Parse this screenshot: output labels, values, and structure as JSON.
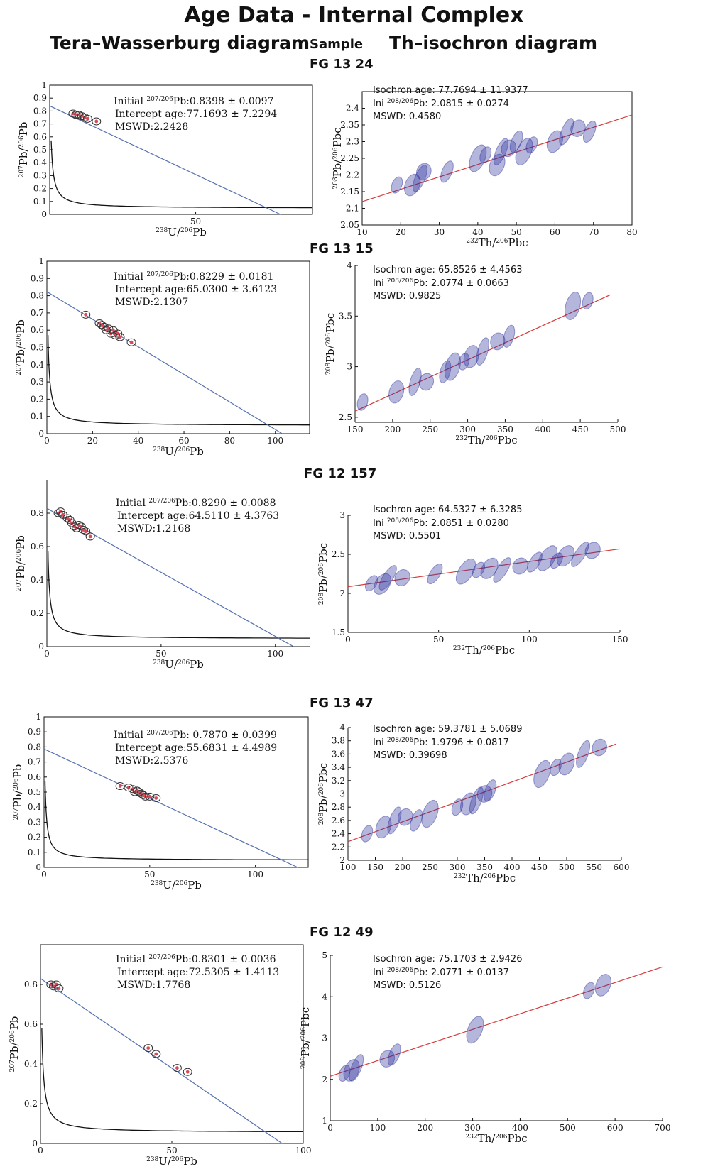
{
  "page": {
    "title": "Age Data - Internal Complex",
    "left_heading": "Tera–Wasserburg diagram",
    "center_heading": "Sample",
    "right_heading": "Th–isochron diagram"
  },
  "samples": [
    "FG 13 24",
    "FG 13 15",
    "FG 12 157",
    "FG 13 47",
    "FG 12 49"
  ],
  "colors": {
    "regression_tw": "#5470b0",
    "regression_th": "#d43c3c",
    "ellipse_tw_stroke": "#333333",
    "ellipse_tw_fill": "#d84a5a",
    "ellipse_th_fill": "#2a2f9a",
    "curve": "#111111"
  },
  "chart_data": [
    {
      "type": "scatter",
      "diagram": "tera-wasserburg",
      "sample": "FG 13 24",
      "xlabel_sup1": "238",
      "xlabel_main1": "U/",
      "xlabel_sup2": "206",
      "xlabel_main2": "Pb",
      "ylabel_sup1": "207",
      "ylabel_main1": "Pb/",
      "ylabel_sup2": "206",
      "ylabel_main2": "Pb",
      "xlim": [
        0,
        90
      ],
      "ylim": [
        0,
        1
      ],
      "xticks": [
        50
      ],
      "yticks": [
        0,
        0.1,
        0.2,
        0.3,
        0.4,
        0.5,
        0.6,
        0.7,
        0.8,
        0.9,
        1
      ],
      "box": "full",
      "initial_prefix": "Initial ",
      "initial_sup": "207/206",
      "initial_suffix": "Pb:0.8398 ± 0.0097",
      "intercept_text": "Intercept age:77.1693 ± 7.2294",
      "mswd_text": "MSWD:2.2428",
      "regression": {
        "y0": 0.8398,
        "x_intercept": 79.0
      },
      "curve_floor": 0.047,
      "points": [
        [
          8,
          0.78
        ],
        [
          9,
          0.77
        ],
        [
          10,
          0.77
        ],
        [
          11,
          0.76
        ],
        [
          12,
          0.75
        ],
        [
          13,
          0.74
        ],
        [
          16,
          0.72
        ]
      ]
    },
    {
      "type": "scatter",
      "diagram": "th-isochron",
      "sample": "FG 13 24",
      "xlabel_sup1": "232",
      "xlabel_main1": "Th/",
      "xlabel_sup2": "206",
      "xlabel_main2": "Pbc",
      "ylabel_sup1": "208",
      "ylabel_main1": "Pb/",
      "ylabel_sup2": "206",
      "ylabel_main2": "Pbc",
      "xlim": [
        10,
        80
      ],
      "ylim": [
        2.05,
        2.45
      ],
      "xticks": [
        10,
        20,
        30,
        40,
        50,
        60,
        70,
        80
      ],
      "yticks": [
        2.05,
        2.1,
        2.15,
        2.2,
        2.25,
        2.3,
        2.35,
        2.4
      ],
      "box": "full",
      "age_text": "Isochron age: 77.7694 ± 11.9377",
      "ini_prefix": "Ini ",
      "ini_sup": "208/206",
      "ini_suffix": "Pb: 2.0815 ± 0.0274",
      "mswd_text": "MSWD: 0.4580",
      "regression": {
        "x0": 10,
        "y0": 2.12,
        "x1": 80,
        "y1": 2.38
      },
      "points": [
        [
          19,
          2.17
        ],
        [
          23,
          2.17
        ],
        [
          25,
          2.19
        ],
        [
          26,
          2.21
        ],
        [
          32,
          2.21
        ],
        [
          40,
          2.25
        ],
        [
          42,
          2.26
        ],
        [
          45,
          2.23
        ],
        [
          46,
          2.27
        ],
        [
          48,
          2.28
        ],
        [
          50,
          2.3
        ],
        [
          52,
          2.27
        ],
        [
          54,
          2.29
        ],
        [
          60,
          2.3
        ],
        [
          63,
          2.33
        ],
        [
          66,
          2.34
        ],
        [
          69,
          2.33
        ]
      ]
    },
    {
      "type": "scatter",
      "diagram": "tera-wasserburg",
      "sample": "FG 13 15",
      "xlabel_sup1": "238",
      "xlabel_main1": "U/",
      "xlabel_sup2": "206",
      "xlabel_main2": "Pb",
      "ylabel_sup1": "207",
      "ylabel_main1": "Pb/",
      "ylabel_sup2": "206",
      "ylabel_main2": "Pb",
      "xlim": [
        0,
        115
      ],
      "ylim": [
        0,
        1
      ],
      "xticks": [
        0,
        20,
        40,
        60,
        80,
        100
      ],
      "yticks": [
        0,
        0.1,
        0.2,
        0.3,
        0.4,
        0.5,
        0.6,
        0.7,
        0.8,
        0.9,
        1
      ],
      "box": "full",
      "initial_prefix": "Initial ",
      "initial_sup": "207/206",
      "initial_suffix": "Pb:0.8229 ± 0.0181",
      "intercept_text": "Intercept  age:65.0300 ± 3.6123",
      "mswd_text": "MSWD:2.1307",
      "regression": {
        "y0": 0.8229,
        "x_intercept": 103.0
      },
      "curve_floor": 0.047,
      "points": [
        [
          17,
          0.69
        ],
        [
          23,
          0.64
        ],
        [
          24,
          0.63
        ],
        [
          25,
          0.62
        ],
        [
          26,
          0.6
        ],
        [
          27,
          0.61
        ],
        [
          28,
          0.58
        ],
        [
          29,
          0.6
        ],
        [
          30,
          0.57
        ],
        [
          31,
          0.58
        ],
        [
          32,
          0.56
        ],
        [
          37,
          0.53
        ]
      ]
    },
    {
      "type": "scatter",
      "diagram": "th-isochron",
      "sample": "FG 13 15",
      "xlabel_sup1": "232",
      "xlabel_main1": "Th/",
      "xlabel_sup2": "206",
      "xlabel_main2": "Pbc",
      "ylabel_sup1": "208",
      "ylabel_main1": "Pb/",
      "ylabel_sup2": "206",
      "ylabel_main2": "Pbc",
      "xlim": [
        150,
        500
      ],
      "ylim": [
        2.45,
        4
      ],
      "xticks": [
        150,
        200,
        250,
        300,
        350,
        400,
        450,
        500
      ],
      "yticks": [
        2.5,
        3,
        3.5,
        4
      ],
      "box": "l",
      "age_text": "Isochron age: 65.8526 ± 4.4563",
      "ini_prefix": "Ini ",
      "ini_sup": "208/206",
      "ini_suffix": "Pb: 2.0774 ± 0.0663",
      "mswd_text": "MSWD: 0.9825",
      "regression": {
        "x0": 150,
        "y0": 2.56,
        "x1": 490,
        "y1": 3.71
      },
      "points": [
        [
          160,
          2.65
        ],
        [
          205,
          2.75
        ],
        [
          230,
          2.85
        ],
        [
          245,
          2.85
        ],
        [
          270,
          2.95
        ],
        [
          280,
          3.0
        ],
        [
          295,
          3.05
        ],
        [
          305,
          3.1
        ],
        [
          320,
          3.15
        ],
        [
          340,
          3.25
        ],
        [
          355,
          3.3
        ],
        [
          440,
          3.6
        ],
        [
          460,
          3.65
        ]
      ]
    },
    {
      "type": "scatter",
      "diagram": "tera-wasserburg",
      "sample": "FG 12 157",
      "xlabel_sup1": "238",
      "xlabel_main1": "U/",
      "xlabel_sup2": "206",
      "xlabel_main2": "Pb",
      "ylabel_sup1": "207",
      "ylabel_main1": "Pb/",
      "ylabel_sup2": "206",
      "ylabel_main2": "Pb",
      "xlim": [
        0,
        115
      ],
      "ylim": [
        0,
        1
      ],
      "xticks": [
        0,
        50,
        100
      ],
      "yticks": [
        0,
        0.2,
        0.4,
        0.6,
        0.8
      ],
      "box": "l",
      "initial_prefix": "Initial ",
      "initial_sup": "207/206",
      "initial_suffix": "Pb:0.8290 ± 0.0088",
      "intercept_text": "Intercept  age:64.5110 ± 4.3763",
      "mswd_text": "MSWD:1.2168",
      "regression": {
        "y0": 0.829,
        "x_intercept": 108.0
      },
      "curve_floor": 0.047,
      "points": [
        [
          5,
          0.8
        ],
        [
          6,
          0.81
        ],
        [
          7,
          0.79
        ],
        [
          9,
          0.77
        ],
        [
          10,
          0.76
        ],
        [
          11,
          0.74
        ],
        [
          12,
          0.72
        ],
        [
          13,
          0.71
        ],
        [
          14,
          0.73
        ],
        [
          15,
          0.72
        ],
        [
          16,
          0.7
        ],
        [
          17,
          0.69
        ],
        [
          19,
          0.66
        ]
      ]
    },
    {
      "type": "scatter",
      "diagram": "th-isochron",
      "sample": "FG 12 157",
      "xlabel_sup1": "232",
      "xlabel_main1": "Th/",
      "xlabel_sup2": "206",
      "xlabel_main2": "Pbc",
      "ylabel_sup1": "208",
      "ylabel_main1": "Pb/",
      "ylabel_sup2": "206",
      "ylabel_main2": "Pbc",
      "xlim": [
        0,
        150
      ],
      "ylim": [
        1.5,
        3
      ],
      "xticks": [
        0,
        50,
        100,
        150
      ],
      "yticks": [
        1.5,
        2,
        2.5,
        3
      ],
      "box": "l",
      "age_text": "Isochron age: 64.5327 ± 6.3285",
      "ini_prefix": "Ini ",
      "ini_sup": "208/206",
      "ini_suffix": "Pb: 2.0851 ± 0.0280",
      "mswd_text": "MSWD: 0.5501",
      "regression": {
        "x0": 0,
        "y0": 2.085,
        "x1": 150,
        "y1": 2.57
      },
      "points": [
        [
          13,
          2.13
        ],
        [
          19,
          2.12
        ],
        [
          22,
          2.2
        ],
        [
          30,
          2.2
        ],
        [
          48,
          2.25
        ],
        [
          65,
          2.28
        ],
        [
          72,
          2.3
        ],
        [
          78,
          2.32
        ],
        [
          85,
          2.3
        ],
        [
          95,
          2.35
        ],
        [
          103,
          2.4
        ],
        [
          110,
          2.45
        ],
        [
          115,
          2.42
        ],
        [
          120,
          2.48
        ],
        [
          128,
          2.5
        ],
        [
          135,
          2.55
        ]
      ]
    },
    {
      "type": "scatter",
      "diagram": "tera-wasserburg",
      "sample": "FG 13 47",
      "xlabel_sup1": "238",
      "xlabel_main1": "U/",
      "xlabel_sup2": "206",
      "xlabel_main2": "Pb",
      "ylabel_sup1": "207",
      "ylabel_main1": "Pb/",
      "ylabel_sup2": "206",
      "ylabel_main2": "Pb",
      "xlim": [
        0,
        125
      ],
      "ylim": [
        0,
        1
      ],
      "xticks": [
        0,
        50,
        100
      ],
      "yticks": [
        0,
        0.1,
        0.2,
        0.3,
        0.4,
        0.5,
        0.6,
        0.7,
        0.8,
        0.9,
        1
      ],
      "box": "full",
      "initial_prefix": "Initial ",
      "initial_sup": "207/206",
      "initial_suffix": "Pb: 0.7870 ± 0.0399",
      "intercept_text": "Intercept  age:55.6831 ± 4.4989",
      "mswd_text": "MSWD:2.5376",
      "regression": {
        "y0": 0.787,
        "x_intercept": 120.0
      },
      "curve_floor": 0.047,
      "points": [
        [
          36,
          0.54
        ],
        [
          40,
          0.53
        ],
        [
          42,
          0.52
        ],
        [
          43,
          0.5
        ],
        [
          44,
          0.51
        ],
        [
          45,
          0.5
        ],
        [
          46,
          0.49
        ],
        [
          47,
          0.48
        ],
        [
          48,
          0.47
        ],
        [
          50,
          0.47
        ],
        [
          53,
          0.46
        ]
      ]
    },
    {
      "type": "scatter",
      "diagram": "th-isochron",
      "sample": "FG 13 47",
      "xlabel_sup1": "232",
      "xlabel_main1": "Th/",
      "xlabel_sup2": "206",
      "xlabel_main2": "Pbc",
      "ylabel_sup1": "208",
      "ylabel_main1": "Pb/",
      "ylabel_sup2": "206",
      "ylabel_main2": "Pbc",
      "xlim": [
        100,
        600
      ],
      "ylim": [
        2,
        4
      ],
      "xticks": [
        100,
        150,
        200,
        250,
        300,
        350,
        400,
        450,
        500,
        550,
        600
      ],
      "yticks": [
        2,
        2.2,
        2.4,
        2.6,
        2.8,
        3,
        3.2,
        3.4,
        3.6,
        3.8,
        4
      ],
      "box": "l",
      "age_text": "Isochron age: 59.3781 ± 5.0689",
      "ini_prefix": "Ini ",
      "ini_sup": "208/206",
      "ini_suffix": "Pb: 1.9796 ± 0.0817",
      "mswd_text": "MSWD: 0.39698",
      "regression": {
        "x0": 100,
        "y0": 2.28,
        "x1": 590,
        "y1": 3.75
      },
      "points": [
        [
          135,
          2.4
        ],
        [
          165,
          2.5
        ],
        [
          185,
          2.6
        ],
        [
          205,
          2.65
        ],
        [
          225,
          2.6
        ],
        [
          250,
          2.7
        ],
        [
          300,
          2.8
        ],
        [
          320,
          2.85
        ],
        [
          335,
          2.9
        ],
        [
          350,
          3.0
        ],
        [
          360,
          3.05
        ],
        [
          455,
          3.3
        ],
        [
          480,
          3.4
        ],
        [
          500,
          3.45
        ],
        [
          530,
          3.6
        ],
        [
          560,
          3.7
        ]
      ]
    },
    {
      "type": "scatter",
      "diagram": "tera-wasserburg",
      "sample": "FG 12 49",
      "xlabel_sup1": "238",
      "xlabel_main1": "U/",
      "xlabel_sup2": "206",
      "xlabel_main2": "Pb",
      "ylabel_sup1": "207",
      "ylabel_main1": "Pb/",
      "ylabel_sup2": "206",
      "ylabel_main2": "Pb",
      "xlim": [
        0,
        100
      ],
      "ylim": [
        0,
        1
      ],
      "xticks": [
        0,
        50,
        100
      ],
      "yticks": [
        0,
        0.2,
        0.4,
        0.6,
        0.8
      ],
      "box": "full",
      "initial_prefix": "Initial ",
      "initial_sup": "207/206",
      "initial_suffix": "Pb:0.8301 ± 0.0036",
      "intercept_text": "Intercept  age:72.5305 ± 1.4113",
      "mswd_text": "MSWD:1.7768",
      "regression": {
        "y0": 0.8301,
        "x_intercept": 92.0
      },
      "curve_floor": 0.055,
      "points": [
        [
          4,
          0.8
        ],
        [
          5,
          0.79
        ],
        [
          6,
          0.8
        ],
        [
          7,
          0.78
        ],
        [
          41,
          0.48
        ],
        [
          44,
          0.45
        ],
        [
          52,
          0.38
        ],
        [
          56,
          0.36
        ]
      ]
    },
    {
      "type": "scatter",
      "diagram": "th-isochron",
      "sample": "FG 12 49",
      "xlabel_sup1": "232",
      "xlabel_main1": "Th/",
      "xlabel_sup2": "206",
      "xlabel_main2": "Pbc",
      "ylabel_sup1": "208",
      "ylabel_main1": "Pb/",
      "ylabel_sup2": "206",
      "ylabel_main2": "Pbc",
      "xlim": [
        0,
        700
      ],
      "ylim": [
        1,
        5
      ],
      "xticks": [
        0,
        100,
        200,
        300,
        400,
        500,
        600,
        700
      ],
      "yticks": [
        1,
        2,
        3,
        4,
        5
      ],
      "box": "l",
      "age_text": "Isochron age: 75.1703 ±  2.9426",
      "ini_prefix": "Ini ",
      "ini_sup": "208/206",
      "ini_suffix": "Pb: 2.0771 ± 0.0137",
      "mswd_text": "MSWD: 0.5126",
      "regression": {
        "x0": 0,
        "y0": 2.077,
        "x1": 700,
        "y1": 4.72
      },
      "points": [
        [
          30,
          2.15
        ],
        [
          45,
          2.22
        ],
        [
          55,
          2.28
        ],
        [
          120,
          2.5
        ],
        [
          135,
          2.6
        ],
        [
          305,
          3.2
        ],
        [
          545,
          4.15
        ],
        [
          575,
          4.28
        ]
      ]
    }
  ]
}
